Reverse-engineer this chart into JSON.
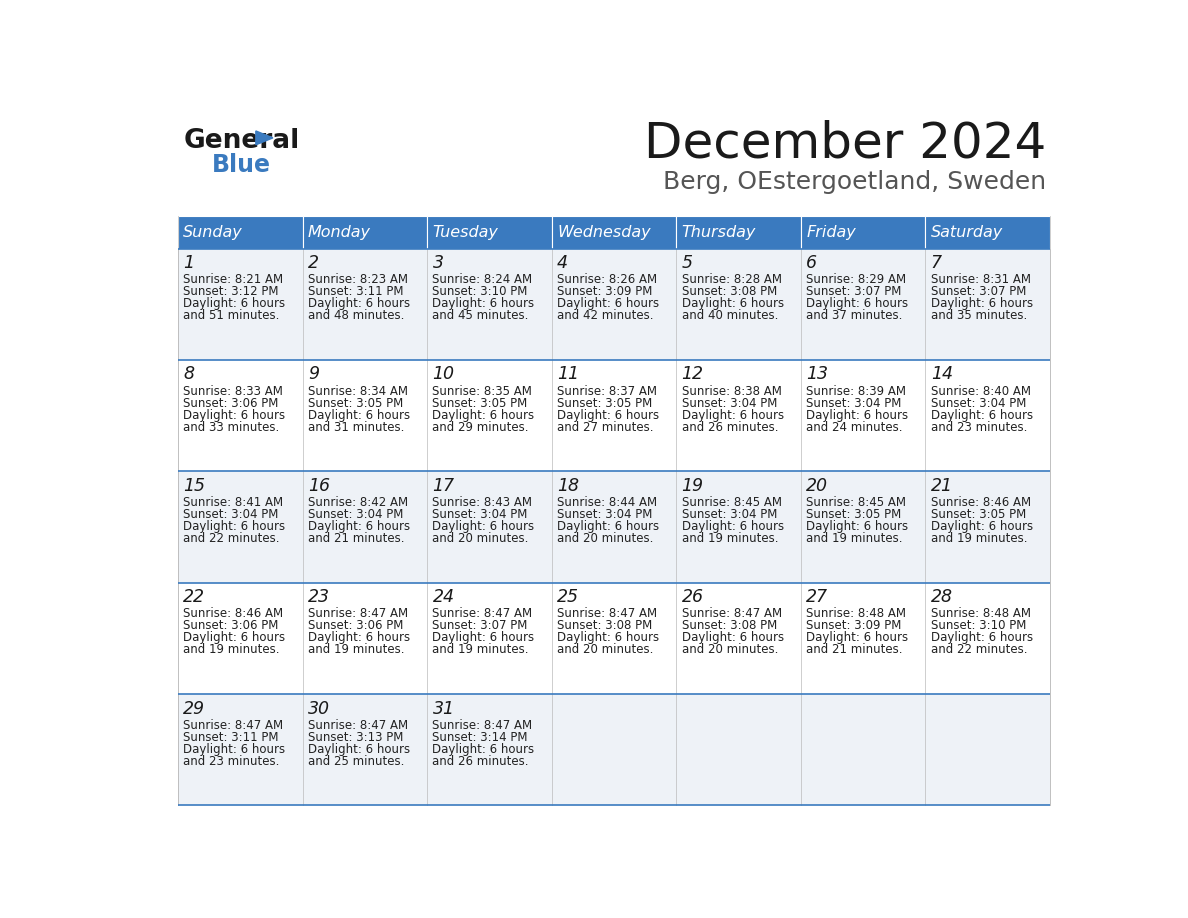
{
  "title": "December 2024",
  "subtitle": "Berg, OEstergoetland, Sweden",
  "header_color": "#3a7abf",
  "header_text_color": "#ffffff",
  "cell_bg_even": "#eef2f7",
  "cell_bg_odd": "#ffffff",
  "border_color": "#3a7abf",
  "days_of_week": [
    "Sunday",
    "Monday",
    "Tuesday",
    "Wednesday",
    "Thursday",
    "Friday",
    "Saturday"
  ],
  "calendar_data": [
    [
      {
        "day": 1,
        "sunrise": "8:21 AM",
        "sunset": "3:12 PM",
        "daylight_suffix": "51 minutes."
      },
      {
        "day": 2,
        "sunrise": "8:23 AM",
        "sunset": "3:11 PM",
        "daylight_suffix": "48 minutes."
      },
      {
        "day": 3,
        "sunrise": "8:24 AM",
        "sunset": "3:10 PM",
        "daylight_suffix": "45 minutes."
      },
      {
        "day": 4,
        "sunrise": "8:26 AM",
        "sunset": "3:09 PM",
        "daylight_suffix": "42 minutes."
      },
      {
        "day": 5,
        "sunrise": "8:28 AM",
        "sunset": "3:08 PM",
        "daylight_suffix": "40 minutes."
      },
      {
        "day": 6,
        "sunrise": "8:29 AM",
        "sunset": "3:07 PM",
        "daylight_suffix": "37 minutes."
      },
      {
        "day": 7,
        "sunrise": "8:31 AM",
        "sunset": "3:07 PM",
        "daylight_suffix": "35 minutes."
      }
    ],
    [
      {
        "day": 8,
        "sunrise": "8:33 AM",
        "sunset": "3:06 PM",
        "daylight_suffix": "33 minutes."
      },
      {
        "day": 9,
        "sunrise": "8:34 AM",
        "sunset": "3:05 PM",
        "daylight_suffix": "31 minutes."
      },
      {
        "day": 10,
        "sunrise": "8:35 AM",
        "sunset": "3:05 PM",
        "daylight_suffix": "29 minutes."
      },
      {
        "day": 11,
        "sunrise": "8:37 AM",
        "sunset": "3:05 PM",
        "daylight_suffix": "27 minutes."
      },
      {
        "day": 12,
        "sunrise": "8:38 AM",
        "sunset": "3:04 PM",
        "daylight_suffix": "26 minutes."
      },
      {
        "day": 13,
        "sunrise": "8:39 AM",
        "sunset": "3:04 PM",
        "daylight_suffix": "24 minutes."
      },
      {
        "day": 14,
        "sunrise": "8:40 AM",
        "sunset": "3:04 PM",
        "daylight_suffix": "23 minutes."
      }
    ],
    [
      {
        "day": 15,
        "sunrise": "8:41 AM",
        "sunset": "3:04 PM",
        "daylight_suffix": "22 minutes."
      },
      {
        "day": 16,
        "sunrise": "8:42 AM",
        "sunset": "3:04 PM",
        "daylight_suffix": "21 minutes."
      },
      {
        "day": 17,
        "sunrise": "8:43 AM",
        "sunset": "3:04 PM",
        "daylight_suffix": "20 minutes."
      },
      {
        "day": 18,
        "sunrise": "8:44 AM",
        "sunset": "3:04 PM",
        "daylight_suffix": "20 minutes."
      },
      {
        "day": 19,
        "sunrise": "8:45 AM",
        "sunset": "3:04 PM",
        "daylight_suffix": "19 minutes."
      },
      {
        "day": 20,
        "sunrise": "8:45 AM",
        "sunset": "3:05 PM",
        "daylight_suffix": "19 minutes."
      },
      {
        "day": 21,
        "sunrise": "8:46 AM",
        "sunset": "3:05 PM",
        "daylight_suffix": "19 minutes."
      }
    ],
    [
      {
        "day": 22,
        "sunrise": "8:46 AM",
        "sunset": "3:06 PM",
        "daylight_suffix": "19 minutes."
      },
      {
        "day": 23,
        "sunrise": "8:47 AM",
        "sunset": "3:06 PM",
        "daylight_suffix": "19 minutes."
      },
      {
        "day": 24,
        "sunrise": "8:47 AM",
        "sunset": "3:07 PM",
        "daylight_suffix": "19 minutes."
      },
      {
        "day": 25,
        "sunrise": "8:47 AM",
        "sunset": "3:08 PM",
        "daylight_suffix": "20 minutes."
      },
      {
        "day": 26,
        "sunrise": "8:47 AM",
        "sunset": "3:08 PM",
        "daylight_suffix": "20 minutes."
      },
      {
        "day": 27,
        "sunrise": "8:48 AM",
        "sunset": "3:09 PM",
        "daylight_suffix": "21 minutes."
      },
      {
        "day": 28,
        "sunrise": "8:48 AM",
        "sunset": "3:10 PM",
        "daylight_suffix": "22 minutes."
      }
    ],
    [
      {
        "day": 29,
        "sunrise": "8:47 AM",
        "sunset": "3:11 PM",
        "daylight_suffix": "23 minutes."
      },
      {
        "day": 30,
        "sunrise": "8:47 AM",
        "sunset": "3:13 PM",
        "daylight_suffix": "25 minutes."
      },
      {
        "day": 31,
        "sunrise": "8:47 AM",
        "sunset": "3:14 PM",
        "daylight_suffix": "26 minutes."
      },
      null,
      null,
      null,
      null
    ]
  ]
}
